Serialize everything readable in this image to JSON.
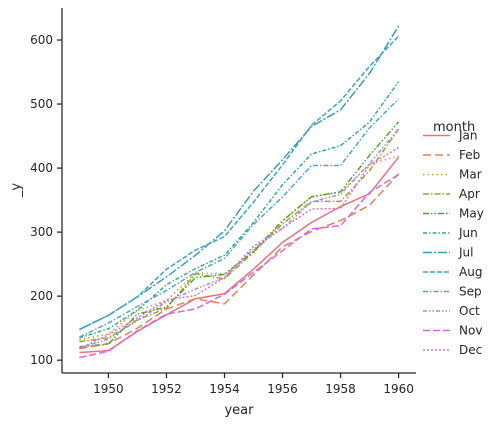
{
  "chart_data": {
    "type": "line",
    "title": "",
    "xlabel": "year",
    "ylabel": "_y",
    "xlim": [
      1948.4,
      1960.6
    ],
    "ylim": [
      80,
      650
    ],
    "x": [
      1949,
      1950,
      1951,
      1952,
      1953,
      1954,
      1955,
      1956,
      1957,
      1958,
      1959,
      1960
    ],
    "x_ticks": [
      1950,
      1952,
      1954,
      1956,
      1958,
      1960
    ],
    "y_ticks": [
      100,
      200,
      300,
      400,
      500,
      600
    ],
    "grid": false,
    "legend_title": "month",
    "legend_position": "right",
    "series": [
      {
        "name": "Jan",
        "color": "#e8707e",
        "dash": "",
        "values": [
          112,
          115,
          145,
          171,
          196,
          204,
          242,
          284,
          315,
          340,
          360,
          417
        ]
      },
      {
        "name": "Feb",
        "color": "#dd8452",
        "dash": "8,4",
        "values": [
          118,
          126,
          150,
          180,
          196,
          188,
          233,
          277,
          301,
          318,
          342,
          391
        ]
      },
      {
        "name": "Mar",
        "color": "#c79a3a",
        "dash": "1.5,3",
        "values": [
          132,
          141,
          178,
          193,
          236,
          235,
          267,
          317,
          356,
          362,
          406,
          419
        ]
      },
      {
        "name": "Apr",
        "color": "#a0a32c",
        "dash": "6,2,1.5,2",
        "values": [
          129,
          135,
          163,
          181,
          235,
          227,
          269,
          313,
          348,
          348,
          396,
          461
        ]
      },
      {
        "name": "May",
        "color": "#55a32f",
        "dash": "6,2,1.5,2,1.5,2",
        "values": [
          121,
          125,
          172,
          183,
          229,
          234,
          270,
          318,
          355,
          363,
          420,
          472
        ]
      },
      {
        "name": "Jun",
        "color": "#38a88a",
        "dash": "4,2,1.5,2",
        "values": [
          135,
          149,
          178,
          218,
          243,
          264,
          315,
          374,
          422,
          435,
          472,
          535
        ]
      },
      {
        "name": "Jul",
        "color": "#3a9eb0",
        "dash": "9,2,2,2",
        "values": [
          148,
          170,
          199,
          230,
          264,
          302,
          364,
          413,
          465,
          491,
          548,
          622
        ]
      },
      {
        "name": "Aug",
        "color": "#3aa6c4",
        "dash": "5,2",
        "values": [
          148,
          170,
          199,
          242,
          272,
          293,
          347,
          405,
          467,
          505,
          559,
          606
        ]
      },
      {
        "name": "Sep",
        "color": "#4ca6d9",
        "dash": "5,2,1.5,2",
        "values": [
          136,
          158,
          184,
          209,
          237,
          259,
          312,
          355,
          404,
          404,
          463,
          508
        ]
      },
      {
        "name": "Oct",
        "color": "#9b8fe0",
        "dash": "4,2,1.5,2,1.5,2",
        "values": [
          119,
          133,
          162,
          191,
          211,
          229,
          274,
          306,
          347,
          359,
          407,
          461
        ]
      },
      {
        "name": "Nov",
        "color": "#d667e0",
        "dash": "7,3",
        "values": [
          104,
          114,
          146,
          172,
          180,
          203,
          237,
          271,
          305,
          310,
          362,
          390
        ]
      },
      {
        "name": "Dec",
        "color": "#e270b8",
        "dash": "2,2",
        "values": [
          118,
          140,
          166,
          194,
          201,
          229,
          278,
          306,
          336,
          337,
          405,
          432
        ]
      }
    ]
  }
}
